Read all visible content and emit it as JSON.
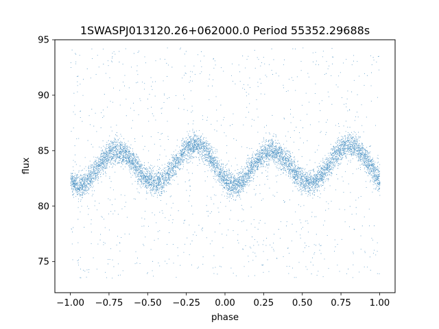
{
  "chart_data": {
    "type": "scatter",
    "title": "1SWASPJ013120.26+062000.0 Period 55352.29688s",
    "xlabel": "phase",
    "ylabel": "flux",
    "xlim": [
      -1.1,
      1.1
    ],
    "ylim": [
      72.2,
      95
    ],
    "xticks": [
      -1.0,
      -0.75,
      -0.5,
      -0.25,
      0.0,
      0.25,
      0.5,
      0.75,
      1.0
    ],
    "xtick_labels": [
      "−1.00",
      "−0.75",
      "−0.50",
      "−0.25",
      "0.00",
      "0.25",
      "0.50",
      "0.75",
      "1.00"
    ],
    "yticks": [
      75,
      80,
      85,
      90,
      95
    ],
    "ytick_labels": [
      "75",
      "80",
      "85",
      "90",
      "95"
    ],
    "grid": false,
    "legend": "none",
    "marker_color": "#1f77b4",
    "series": [
      {
        "phase": [
          -1.0,
          -0.95,
          -0.9,
          -0.85,
          -0.8,
          -0.75,
          -0.7,
          -0.65,
          -0.6,
          -0.55,
          -0.5,
          -0.45,
          -0.4,
          -0.35,
          -0.3,
          -0.25,
          -0.2,
          -0.15,
          -0.1,
          -0.05,
          0.0,
          0.05,
          0.1,
          0.15,
          0.2,
          0.25,
          0.3,
          0.35,
          0.4,
          0.45,
          0.5,
          0.55,
          0.6,
          0.65,
          0.7,
          0.75,
          0.8,
          0.85,
          0.9,
          0.95,
          1.0
        ],
        "flux_median": [
          82.3,
          81.8,
          82.1,
          83.0,
          84.0,
          84.7,
          85.0,
          84.7,
          84.0,
          83.0,
          82.3,
          82.0,
          82.4,
          83.3,
          84.3,
          85.2,
          85.6,
          85.3,
          84.5,
          83.4,
          82.3,
          81.8,
          82.1,
          83.0,
          84.0,
          84.7,
          85.0,
          84.7,
          84.0,
          83.0,
          82.3,
          82.0,
          82.4,
          83.3,
          84.3,
          85.2,
          85.6,
          85.3,
          84.5,
          83.4,
          82.3
        ]
      }
    ]
  }
}
